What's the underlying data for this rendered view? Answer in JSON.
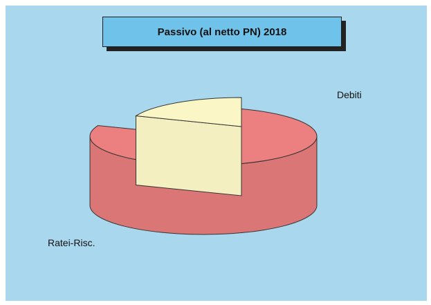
{
  "chart_data": {
    "type": "pie",
    "title": "Passivo (al netto PN) 2018",
    "slices": [
      {
        "label": "Ratei-Risc.",
        "value": 81,
        "color": "#ec7f7f"
      },
      {
        "label": "Debiti",
        "value": 19,
        "color": "#fbf6c6"
      }
    ],
    "three_d": true,
    "exploded": "Debiti",
    "background_color": "#a9d8ee",
    "title_box_color": "#6fc3ea"
  }
}
